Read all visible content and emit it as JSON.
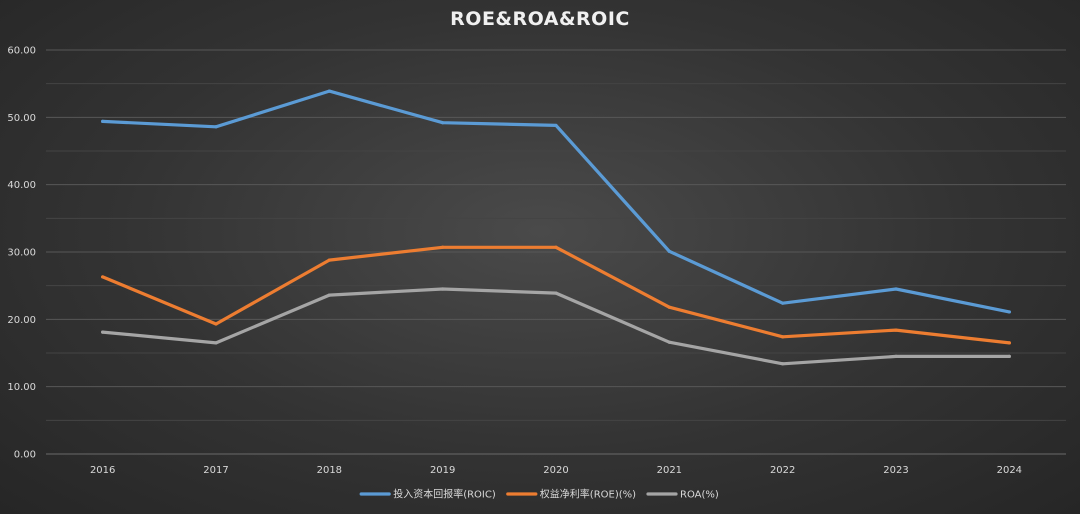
{
  "chart_data": {
    "type": "line",
    "title": "ROE&ROA&ROIC",
    "xlabel": "",
    "ylabel": "",
    "categories": [
      "2016",
      "2017",
      "2018",
      "2019",
      "2020",
      "2021",
      "2022",
      "2023",
      "2024"
    ],
    "ylim": [
      0,
      60
    ],
    "yticks": [
      0,
      10,
      20,
      30,
      40,
      50,
      60
    ],
    "ytick_labels": [
      "0.00",
      "10.00",
      "20.00",
      "30.00",
      "40.00",
      "50.00",
      "60.00"
    ],
    "grid": true,
    "legend_position": "bottom",
    "series": [
      {
        "name": "投入资本回报率(ROIC)",
        "color": "#5b9bd5",
        "values": [
          49.4,
          48.6,
          53.9,
          49.2,
          48.8,
          30.1,
          22.4,
          24.5,
          21.1
        ]
      },
      {
        "name": "权益净利率(ROE)(%)",
        "color": "#ed7d31",
        "values": [
          26.3,
          19.3,
          28.8,
          30.7,
          30.7,
          21.8,
          17.4,
          18.4,
          16.5
        ]
      },
      {
        "name": "ROA(%)",
        "color": "#a5a5a5",
        "values": [
          18.1,
          16.5,
          23.6,
          24.5,
          23.9,
          16.6,
          13.4,
          14.5,
          14.5
        ]
      }
    ]
  }
}
